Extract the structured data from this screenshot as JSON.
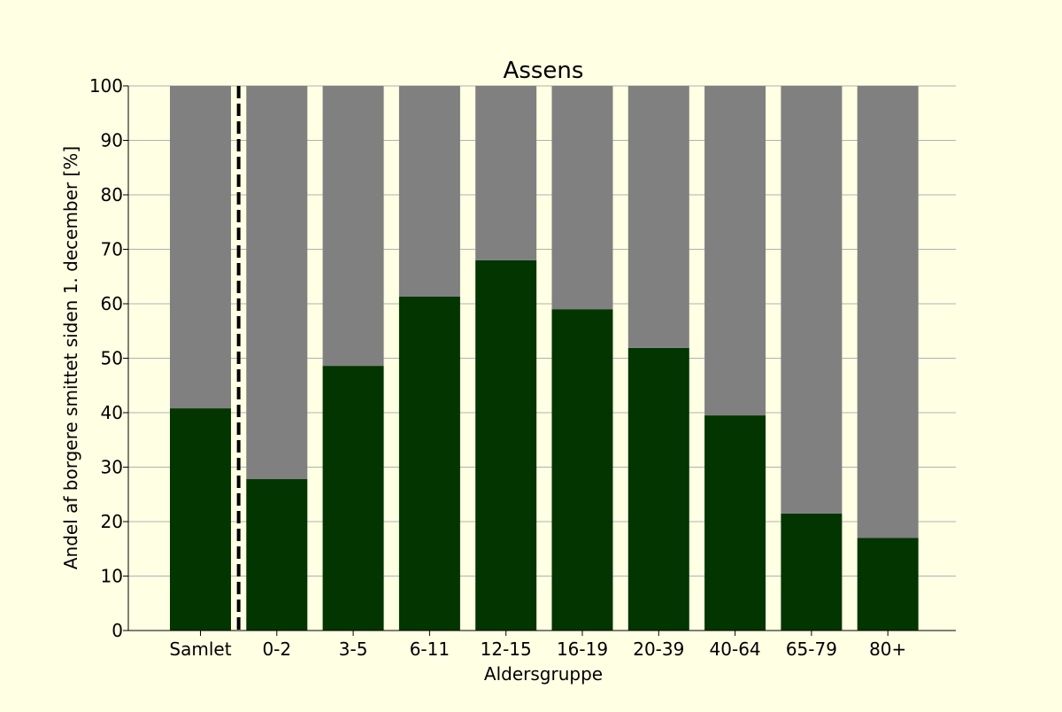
{
  "colors": {
    "background": "#ffffe4",
    "infected": "#033500",
    "remainder": "#808080",
    "gridline": "#b0b0b0",
    "divider": "#000000"
  },
  "chart_data": {
    "type": "bar",
    "stacked": true,
    "title": "Assens",
    "xlabel": "Aldersgruppe",
    "ylabel": "Andel af borgere smittet siden 1. december [%]",
    "categories": [
      "Samlet",
      "0-2",
      "3-5",
      "6-11",
      "12-15",
      "16-19",
      "20-39",
      "40-64",
      "65-79",
      "80+"
    ],
    "series": [
      {
        "color": "#033500",
        "values": [
          40.8,
          27.8,
          48.6,
          61.3,
          68.0,
          59.0,
          51.9,
          39.5,
          21.5,
          17.0
        ]
      },
      {
        "color": "#808080",
        "values": [
          59.2,
          72.2,
          51.4,
          38.7,
          32.0,
          41.0,
          48.1,
          60.5,
          78.5,
          83.0
        ]
      }
    ],
    "ylim": [
      0,
      100
    ],
    "yticks": [
      0,
      10,
      20,
      30,
      40,
      50,
      60,
      70,
      80,
      90,
      100
    ],
    "grid": "y",
    "divider_after_category": "Samlet"
  }
}
